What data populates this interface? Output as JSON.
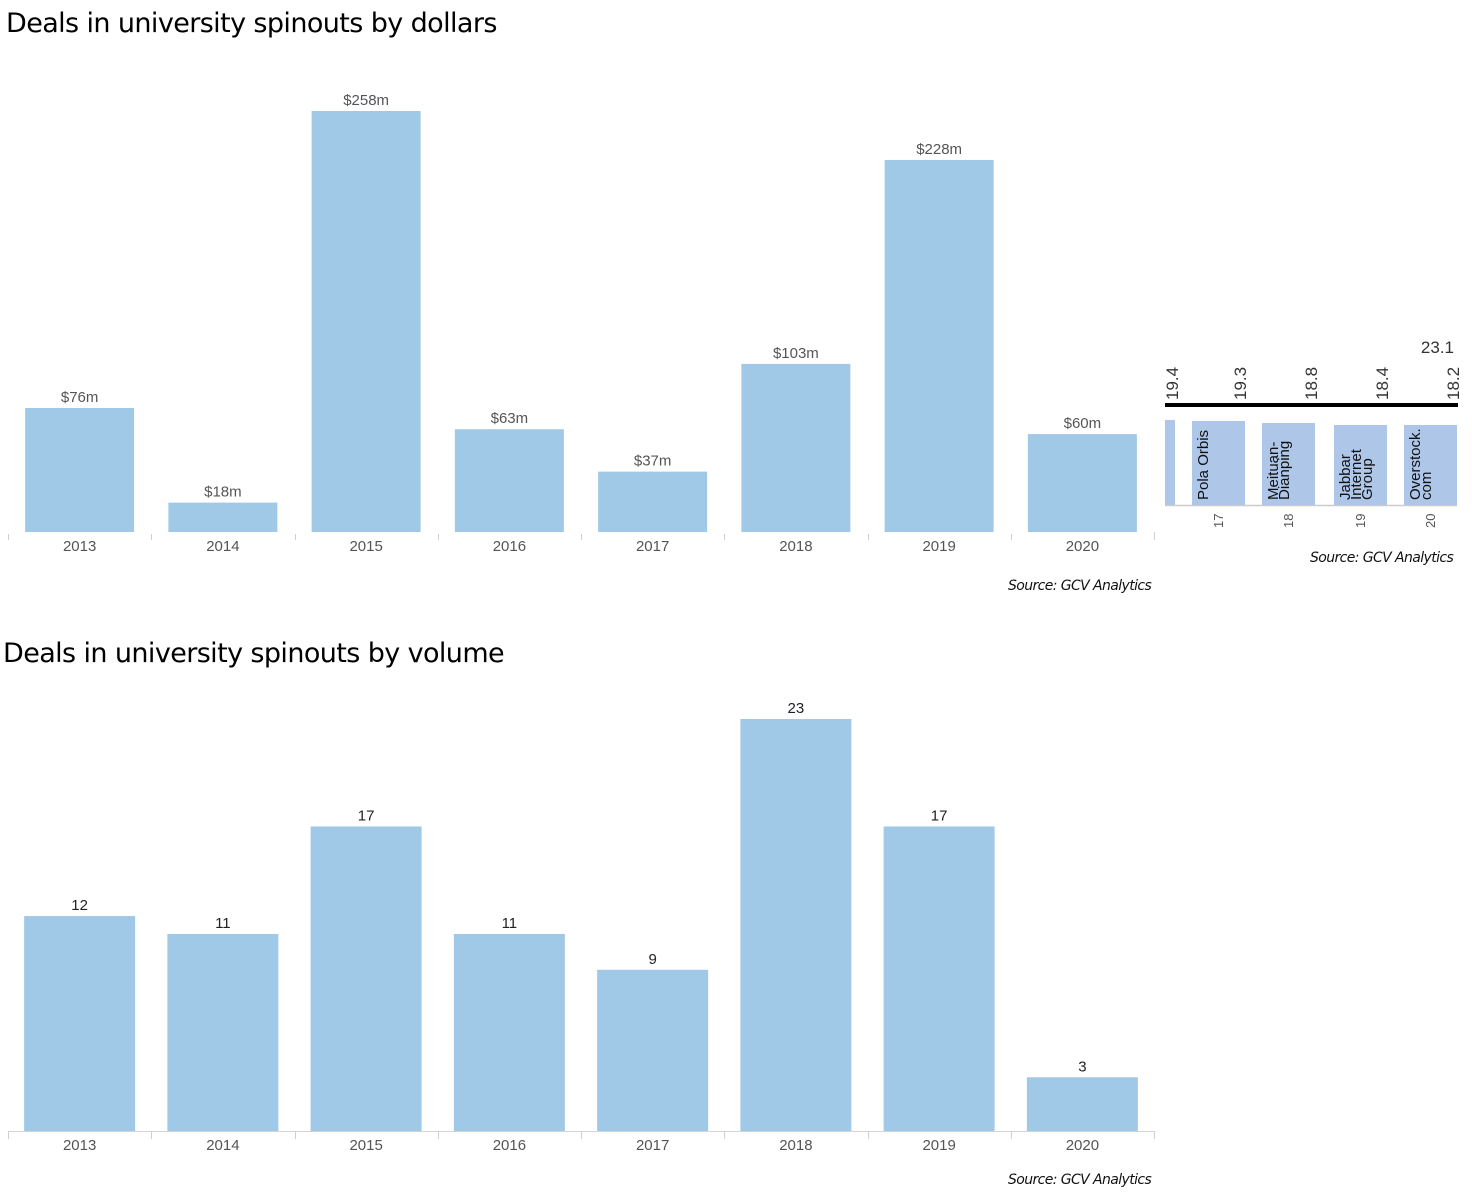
{
  "chart_data": [
    {
      "type": "bar",
      "title": "Deals in university spinouts by dollars",
      "xlabel": "",
      "ylabel": "",
      "categories": [
        "2013",
        "2014",
        "2015",
        "2016",
        "2017",
        "2018",
        "2019",
        "2020"
      ],
      "values": [
        76,
        18,
        258,
        63,
        37,
        103,
        228,
        60
      ],
      "value_labels": [
        "$76m",
        "$18m",
        "$258m",
        "$63m",
        "$37m",
        "$103m",
        "$228m",
        "$60m"
      ],
      "units": "USD millions",
      "ylim": [
        0,
        258
      ],
      "grid": false,
      "legend": "none",
      "bar_color": "#a0c9e7",
      "source": "Source: GCV Analytics"
    },
    {
      "type": "bar",
      "title": "",
      "note": "cropped fragment of another chart at right edge",
      "categories": [
        "17",
        "18",
        "19",
        "20"
      ],
      "bar_names": [
        "Pola Orbis",
        "Meituan-\nDianping",
        "Jabbar\nInternet\nGroup",
        "Overstock.\ncom"
      ],
      "bar_name_lines": [
        [
          "Pola Orbis"
        ],
        [
          "Meituan-",
          "Dianping"
        ],
        [
          "Jabbar",
          "Internet",
          "Group"
        ],
        [
          "Overstock.",
          "com"
        ]
      ],
      "values": [
        19.3,
        18.8,
        18.4,
        18.2
      ],
      "top_labels": [
        "19.4",
        "19.3",
        "18.8",
        "18.4",
        "18.2"
      ],
      "extra_label": "23.1",
      "bar_color": "#aec6e8",
      "source": "Source: GCV Analytics"
    },
    {
      "type": "bar",
      "title": "Deals in university spinouts by volume",
      "xlabel": "",
      "ylabel": "",
      "categories": [
        "2013",
        "2014",
        "2015",
        "2016",
        "2017",
        "2018",
        "2019",
        "2020"
      ],
      "values": [
        12,
        11,
        17,
        11,
        9,
        23,
        17,
        3
      ],
      "value_labels": [
        "12",
        "11",
        "17",
        "11",
        "9",
        "23",
        "17",
        "3"
      ],
      "ylim": [
        0,
        23
      ],
      "grid": false,
      "legend": "none",
      "bar_color": "#a0c9e7",
      "source": "Source: GCV Analytics"
    }
  ]
}
